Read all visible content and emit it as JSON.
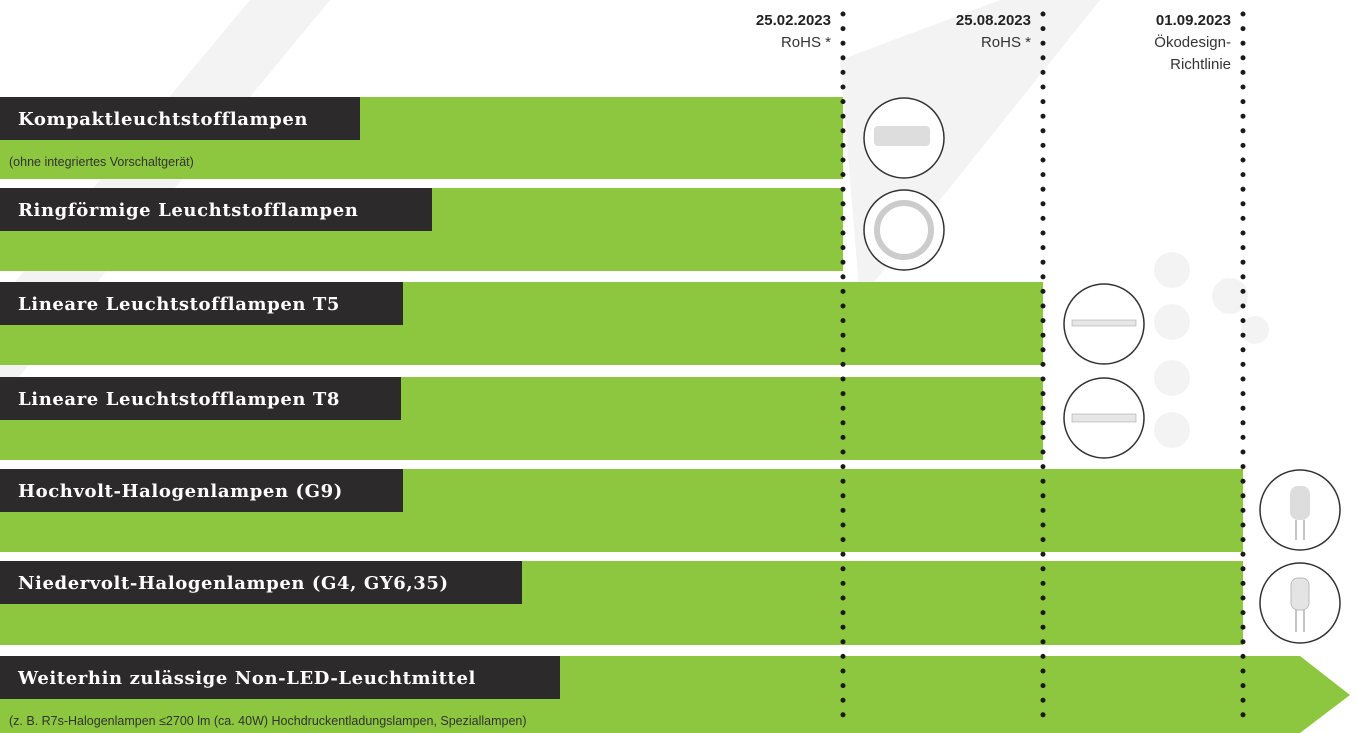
{
  "milestones": [
    {
      "date": "25.02.2023",
      "lines": [
        "RoHS *"
      ]
    },
    {
      "date": "25.08.2023",
      "lines": [
        "RoHS *"
      ]
    },
    {
      "date": "01.09.2023",
      "lines": [
        "Ökodesign-",
        "Richtlinie"
      ]
    }
  ],
  "rows": [
    {
      "title": "Kompaktleuchtstofflampen",
      "note": "(ohne integriertes Vorschaltgerät)"
    },
    {
      "title": "Ringförmige Leuchtstofflampen"
    },
    {
      "title": "Lineare Leuchtstofflampen T5"
    },
    {
      "title": "Lineare Leuchtstofflampen T8"
    },
    {
      "title": "Hochvolt-Halogenlampen (G9)"
    },
    {
      "title": "Niedervolt-Halogenlampen (G4, GY6,35)"
    },
    {
      "title": "Weiterhin zulässige Non-LED-Leuchtmittel",
      "note": "(z. B. R7s-Halogenlampen ≤2700 lm (ca. 40W) Hochdruckentladungslampen, Speziallampen)"
    }
  ]
}
